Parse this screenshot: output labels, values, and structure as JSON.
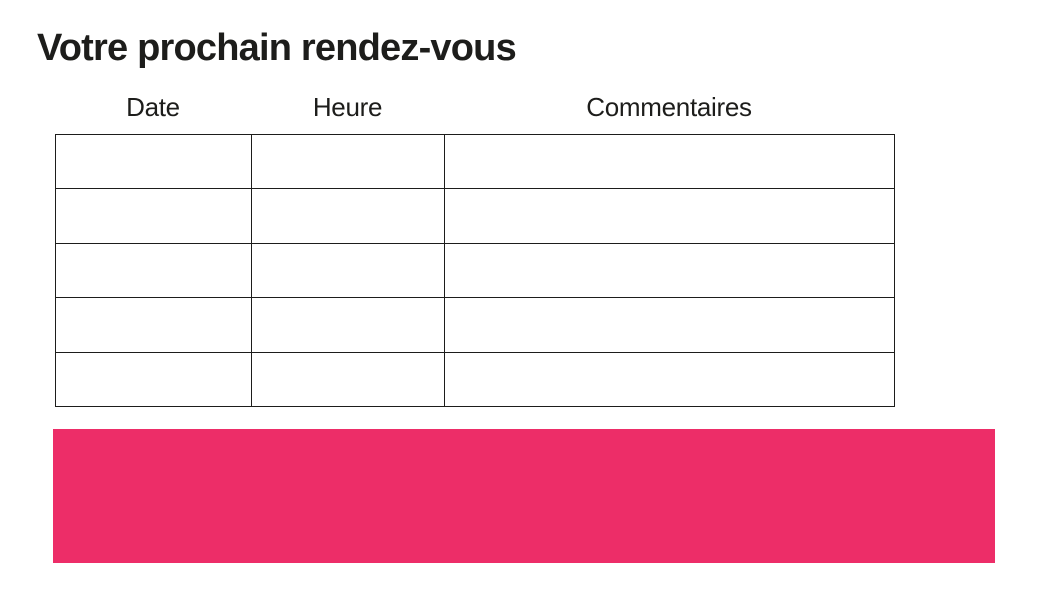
{
  "page": {
    "title": "Votre prochain rendez-vous"
  },
  "appointments_table": {
    "columns": [
      {
        "key": "date",
        "label": "Date"
      },
      {
        "key": "heure",
        "label": "Heure"
      },
      {
        "key": "commentaires",
        "label": "Commentaires"
      }
    ],
    "rows": [
      [
        "",
        "",
        ""
      ],
      [
        "",
        "",
        ""
      ],
      [
        "",
        "",
        ""
      ],
      [
        "",
        "",
        ""
      ],
      [
        "",
        "",
        ""
      ]
    ]
  },
  "colors": {
    "accent": "#ED2D68",
    "border": "#1d1d1b",
    "text": "#1d1d1b",
    "background": "#ffffff"
  }
}
